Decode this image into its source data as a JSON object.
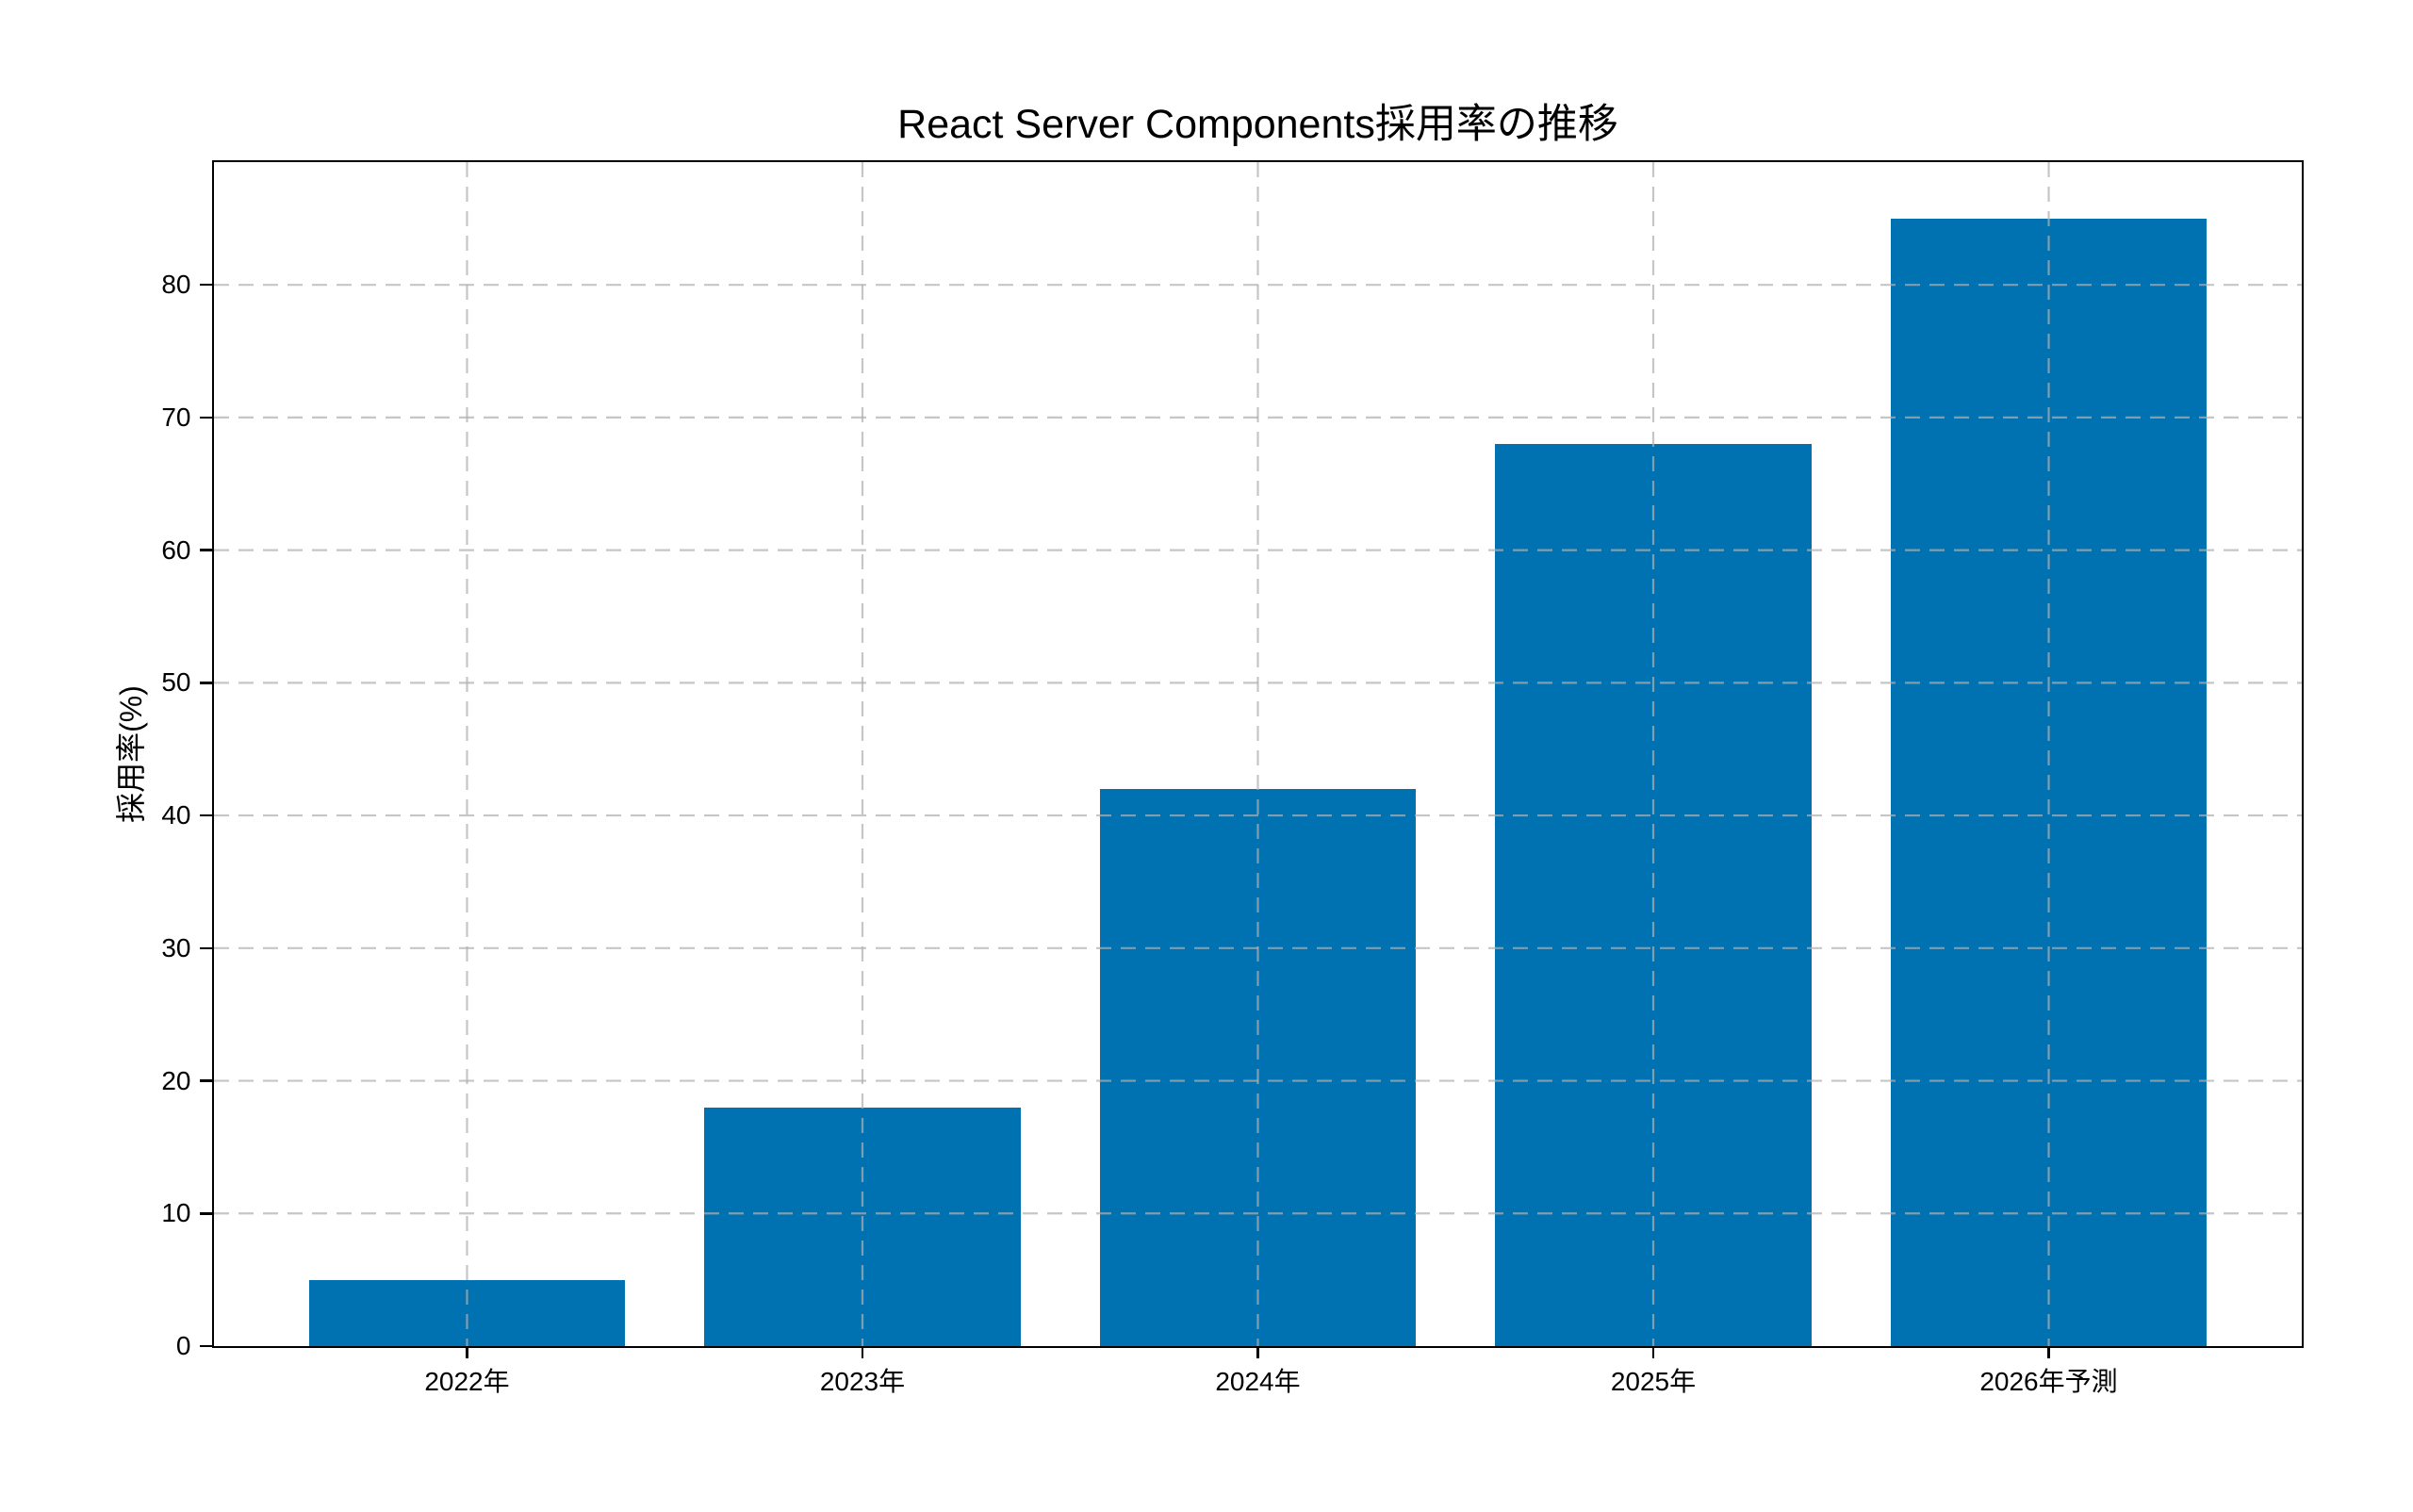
{
  "chart_data": {
    "type": "bar",
    "title": "React Server Components採用率の推移",
    "xlabel": "",
    "ylabel": "採用率(%)",
    "categories": [
      "2022年",
      "2023年",
      "2024年",
      "2025年",
      "2026年予測"
    ],
    "values": [
      5,
      18,
      42,
      68,
      85
    ],
    "yticks": [
      0,
      10,
      20,
      30,
      40,
      50,
      60,
      70,
      80
    ],
    "ylim": [
      0,
      89.25
    ],
    "bar_color": "#0072b2",
    "bar_width_fraction": 0.8,
    "grid": {
      "style": "dashed",
      "axes": "both",
      "color": "#b0b0b0",
      "opacity": 0.72,
      "drawn_above_bars": true
    },
    "axis_color": "#000000",
    "background_color": "#ffffff",
    "legend": "none"
  }
}
